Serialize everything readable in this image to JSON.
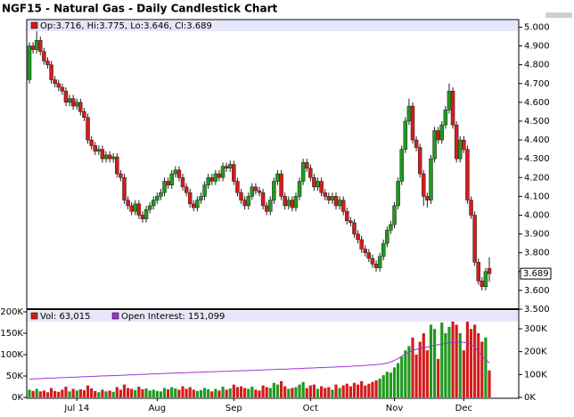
{
  "chart_data": {
    "type": "candlestick",
    "title": "NGF15 - Natural Gas - Daily Candlestick Chart",
    "ohlc_legend": "Op:3.716, Hi:3.775, Lo:3.646, Cl:3.689",
    "categories": [
      null,
      null,
      null,
      null,
      null,
      null,
      null,
      null,
      null,
      null,
      null,
      null,
      null,
      "Jul 14",
      null,
      null,
      null,
      null,
      null,
      null,
      null,
      null,
      null,
      null,
      null,
      null,
      null,
      null,
      null,
      null,
      null,
      null,
      null,
      null,
      null,
      "Aug",
      null,
      null,
      null,
      null,
      null,
      null,
      null,
      null,
      null,
      null,
      null,
      null,
      null,
      null,
      null,
      null,
      null,
      null,
      null,
      null,
      "Sep",
      null,
      null,
      null,
      null,
      null,
      null,
      null,
      null,
      null,
      null,
      null,
      null,
      null,
      null,
      null,
      null,
      null,
      null,
      null,
      null,
      "Oct",
      null,
      null,
      null,
      null,
      null,
      null,
      null,
      null,
      null,
      null,
      null,
      null,
      null,
      null,
      null,
      null,
      null,
      null,
      null,
      null,
      null,
      null,
      "Nov",
      null,
      null,
      null,
      null,
      null,
      null,
      null,
      null,
      null,
      null,
      null,
      null,
      null,
      null,
      null,
      null,
      null,
      null,
      "Dec",
      null,
      null,
      null,
      null,
      null,
      null,
      null
    ],
    "open": [
      4.72,
      4.9,
      4.88,
      4.93,
      4.87,
      4.82,
      4.8,
      4.72,
      4.7,
      4.68,
      4.66,
      4.6,
      4.62,
      4.58,
      4.6,
      4.55,
      4.52,
      4.4,
      4.37,
      4.34,
      4.35,
      4.3,
      4.32,
      4.3,
      4.31,
      4.22,
      4.2,
      4.08,
      4.05,
      4.02,
      4.06,
      4.0,
      3.98,
      4.03,
      4.05,
      4.08,
      4.1,
      4.12,
      4.18,
      4.16,
      4.22,
      4.24,
      4.2,
      4.15,
      4.12,
      4.06,
      4.04,
      4.08,
      4.1,
      4.16,
      4.2,
      4.18,
      4.22,
      4.2,
      4.26,
      4.25,
      4.27,
      4.18,
      4.12,
      4.08,
      4.05,
      4.1,
      4.15,
      4.13,
      4.12,
      4.05,
      4.02,
      4.08,
      4.18,
      4.22,
      4.1,
      4.05,
      4.08,
      4.04,
      4.1,
      4.18,
      4.28,
      4.25,
      4.2,
      4.15,
      4.18,
      4.12,
      4.1,
      4.08,
      4.1,
      4.05,
      4.08,
      4.02,
      3.97,
      3.96,
      3.9,
      3.87,
      3.82,
      3.8,
      3.77,
      3.74,
      3.72,
      3.78,
      3.85,
      3.92,
      3.95,
      4.05,
      4.18,
      4.35,
      4.5,
      4.58,
      4.4,
      4.36,
      4.22,
      4.1,
      4.08,
      4.3,
      4.45,
      4.4,
      4.48,
      4.56,
      4.66,
      4.48,
      4.3,
      4.4,
      4.35,
      4.08,
      4.0,
      3.75,
      3.65,
      3.62,
      3.716
    ],
    "high": [
      4.92,
      4.92,
      5.02,
      4.95,
      4.89,
      4.84,
      4.82,
      4.74,
      4.72,
      4.7,
      4.68,
      4.64,
      4.64,
      4.62,
      4.62,
      4.57,
      4.54,
      4.42,
      4.39,
      4.37,
      4.37,
      4.34,
      4.34,
      4.33,
      4.33,
      4.24,
      4.22,
      4.1,
      4.07,
      4.08,
      4.08,
      4.02,
      4.05,
      4.07,
      4.1,
      4.12,
      4.14,
      4.2,
      4.2,
      4.24,
      4.26,
      4.26,
      4.22,
      4.17,
      4.14,
      4.08,
      4.1,
      4.12,
      4.18,
      4.22,
      4.22,
      4.24,
      4.24,
      4.28,
      4.28,
      4.29,
      4.29,
      4.2,
      4.14,
      4.1,
      4.12,
      4.17,
      4.17,
      4.15,
      4.14,
      4.07,
      4.1,
      4.2,
      4.24,
      4.24,
      4.12,
      4.1,
      4.1,
      4.12,
      4.2,
      4.3,
      4.3,
      4.27,
      4.22,
      4.2,
      4.2,
      4.14,
      4.12,
      4.12,
      4.12,
      4.1,
      4.1,
      4.04,
      3.99,
      3.98,
      3.92,
      3.89,
      3.84,
      3.82,
      3.79,
      3.76,
      3.8,
      3.87,
      3.94,
      3.97,
      4.07,
      4.2,
      4.37,
      4.52,
      4.62,
      4.6,
      4.42,
      4.38,
      4.24,
      4.12,
      4.32,
      4.47,
      4.47,
      4.5,
      4.58,
      4.7,
      4.68,
      4.5,
      4.42,
      4.42,
      4.37,
      4.1,
      4.02,
      3.77,
      3.67,
      3.72,
      3.775
    ],
    "low": [
      4.7,
      4.86,
      4.86,
      4.85,
      4.8,
      4.78,
      4.7,
      4.68,
      4.66,
      4.64,
      4.58,
      4.58,
      4.56,
      4.56,
      4.53,
      4.5,
      4.38,
      4.35,
      4.32,
      4.32,
      4.28,
      4.28,
      4.28,
      4.28,
      4.2,
      4.18,
      4.06,
      4.03,
      4.0,
      4.0,
      3.98,
      3.96,
      3.96,
      4.01,
      4.03,
      4.06,
      4.08,
      4.1,
      4.14,
      4.14,
      4.2,
      4.18,
      4.13,
      4.1,
      4.04,
      4.02,
      4.02,
      4.06,
      4.08,
      4.14,
      4.16,
      4.16,
      4.18,
      4.18,
      4.23,
      4.23,
      4.16,
      4.1,
      4.06,
      4.03,
      4.03,
      4.08,
      4.11,
      4.1,
      4.03,
      4.0,
      4.0,
      4.06,
      4.16,
      4.08,
      4.03,
      4.03,
      4.02,
      4.02,
      4.08,
      4.16,
      4.23,
      4.18,
      4.13,
      4.13,
      4.1,
      4.08,
      4.06,
      4.06,
      4.03,
      4.03,
      4.0,
      3.95,
      3.94,
      3.88,
      3.85,
      3.8,
      3.78,
      3.75,
      3.72,
      3.7,
      3.7,
      3.76,
      3.83,
      3.9,
      3.93,
      4.03,
      4.16,
      4.33,
      4.48,
      4.38,
      4.34,
      4.2,
      4.05,
      4.04,
      4.06,
      4.28,
      4.38,
      4.38,
      4.46,
      4.54,
      4.46,
      4.28,
      4.28,
      4.33,
      4.06,
      3.98,
      3.73,
      3.63,
      3.6,
      3.6,
      3.646
    ],
    "close": [
      4.9,
      4.88,
      4.93,
      4.87,
      4.82,
      4.8,
      4.72,
      4.7,
      4.68,
      4.66,
      4.6,
      4.62,
      4.58,
      4.6,
      4.55,
      4.52,
      4.4,
      4.37,
      4.34,
      4.35,
      4.3,
      4.32,
      4.3,
      4.31,
      4.22,
      4.2,
      4.08,
      4.05,
      4.02,
      4.06,
      4.0,
      3.98,
      4.03,
      4.05,
      4.08,
      4.1,
      4.12,
      4.18,
      4.16,
      4.22,
      4.24,
      4.2,
      4.15,
      4.12,
      4.06,
      4.04,
      4.08,
      4.1,
      4.16,
      4.2,
      4.18,
      4.22,
      4.2,
      4.26,
      4.25,
      4.27,
      4.18,
      4.12,
      4.08,
      4.05,
      4.1,
      4.15,
      4.13,
      4.12,
      4.05,
      4.02,
      4.08,
      4.18,
      4.22,
      4.1,
      4.05,
      4.08,
      4.04,
      4.1,
      4.18,
      4.28,
      4.25,
      4.2,
      4.15,
      4.18,
      4.12,
      4.1,
      4.08,
      4.1,
      4.05,
      4.08,
      4.02,
      3.97,
      3.96,
      3.9,
      3.87,
      3.82,
      3.8,
      3.77,
      3.74,
      3.72,
      3.78,
      3.85,
      3.92,
      3.95,
      4.05,
      4.18,
      4.35,
      4.5,
      4.58,
      4.4,
      4.36,
      4.22,
      4.1,
      4.08,
      4.3,
      4.45,
      4.4,
      4.48,
      4.56,
      4.66,
      4.48,
      4.3,
      4.4,
      4.35,
      4.08,
      4.0,
      3.75,
      3.65,
      3.62,
      3.7,
      3.689
    ],
    "up_color": "#1f9a1f",
    "down_color": "#d41c1c",
    "ylim": [
      3.5,
      5.04
    ],
    "yticks": [
      {
        "value": 3.5,
        "label": "3.500"
      },
      {
        "value": 3.6,
        "label": "3.600"
      },
      {
        "value": 3.7,
        "label": "3.700"
      },
      {
        "value": 3.8,
        "label": "3.800"
      },
      {
        "value": 3.9,
        "label": "3.900"
      },
      {
        "value": 4.0,
        "label": "4.000"
      },
      {
        "value": 4.1,
        "label": "4.100"
      },
      {
        "value": 4.2,
        "label": "4.200"
      },
      {
        "value": 4.3,
        "label": "4.300"
      },
      {
        "value": 4.4,
        "label": "4.400"
      },
      {
        "value": 4.5,
        "label": "4.500"
      },
      {
        "value": 4.6,
        "label": "4.600"
      },
      {
        "value": 4.7,
        "label": "4.700"
      },
      {
        "value": 4.8,
        "label": "4.800"
      },
      {
        "value": 4.9,
        "label": "4.900"
      },
      {
        "value": 5.0,
        "label": "5.000"
      }
    ],
    "volume": {
      "legend": "Vol: 63,015",
      "values": [
        18000,
        15000,
        20000,
        14000,
        16000,
        12000,
        22000,
        15000,
        13000,
        18000,
        25000,
        14000,
        20000,
        16000,
        19000,
        17000,
        28000,
        21000,
        15000,
        12000,
        18000,
        14000,
        16000,
        13000,
        24000,
        18000,
        30000,
        22000,
        20000,
        17000,
        25000,
        19000,
        21000,
        16000,
        18000,
        15000,
        14000,
        22000,
        19000,
        24000,
        21000,
        18000,
        26000,
        20000,
        24000,
        18000,
        15000,
        17000,
        22000,
        19000,
        14000,
        20000,
        16000,
        25000,
        18000,
        21000,
        30000,
        24000,
        26000,
        22000,
        20000,
        25000,
        18000,
        16000,
        28000,
        24000,
        22000,
        34000,
        30000,
        38000,
        26000,
        20000,
        22000,
        24000,
        30000,
        36000,
        22000,
        28000,
        30000,
        20000,
        26000,
        22000,
        24000,
        18000,
        30000,
        22000,
        28000,
        32000,
        26000,
        34000,
        30000,
        38000,
        28000,
        32000,
        36000,
        40000,
        44000,
        52000,
        60000,
        58000,
        70000,
        80000,
        95000,
        110000,
        120000,
        140000,
        100000,
        130000,
        150000,
        110000,
        170000,
        160000,
        90000,
        175000,
        150000,
        165000,
        185000,
        170000,
        150000,
        110000,
        180000,
        160000,
        170000,
        150000,
        130000,
        140000,
        63015
      ],
      "ylim": [
        0,
        200000
      ],
      "yticks": [
        {
          "value": 0,
          "label": "0K"
        },
        {
          "value": 50000,
          "label": "50K"
        },
        {
          "value": 100000,
          "label": "100K"
        },
        {
          "value": 150000,
          "label": "150K"
        },
        {
          "value": 200000,
          "label": "200K"
        }
      ]
    },
    "open_interest": {
      "legend": "Open Interest: 151,099",
      "color": "#a033d6",
      "values": [
        80000,
        81000,
        82000,
        82000,
        83000,
        84000,
        84000,
        85000,
        86000,
        86000,
        87000,
        88000,
        88000,
        89000,
        90000,
        90000,
        91000,
        92000,
        92000,
        93000,
        94000,
        94000,
        95000,
        95000,
        96000,
        97000,
        97000,
        98000,
        99000,
        99000,
        100000,
        101000,
        101000,
        102000,
        103000,
        103000,
        104000,
        104000,
        105000,
        106000,
        106000,
        107000,
        107000,
        108000,
        109000,
        109000,
        110000,
        110000,
        111000,
        112000,
        112000,
        113000,
        113000,
        114000,
        114000,
        115000,
        116000,
        116000,
        117000,
        117000,
        118000,
        118000,
        119000,
        120000,
        120000,
        121000,
        121000,
        122000,
        123000,
        123000,
        124000,
        124000,
        125000,
        126000,
        126000,
        127000,
        128000,
        128000,
        129000,
        130000,
        130000,
        131000,
        132000,
        132000,
        133000,
        134000,
        134000,
        135000,
        136000,
        137000,
        138000,
        139000,
        140000,
        141000,
        142000,
        143000,
        145000,
        147000,
        150000,
        155000,
        162000,
        170000,
        180000,
        190000,
        198000,
        205000,
        210000,
        214000,
        218000,
        220000,
        224000,
        228000,
        230000,
        234000,
        236000,
        238000,
        240000,
        242000,
        243000,
        240000,
        238000,
        232000,
        220000,
        200000,
        180000,
        165000,
        151099
      ],
      "y2lim": [
        0,
        374000
      ],
      "y2ticks": [
        {
          "value": 0,
          "label": "0K"
        },
        {
          "value": 100000,
          "label": "100K"
        },
        {
          "value": 200000,
          "label": "200K"
        },
        {
          "value": 300000,
          "label": "300K"
        }
      ]
    }
  }
}
